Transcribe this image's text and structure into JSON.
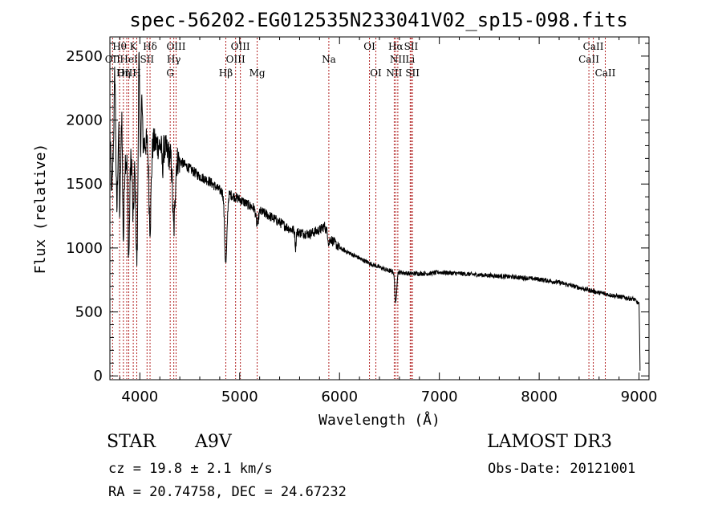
{
  "chart_data": {
    "type": "line",
    "title": "spec-56202-EG012535N233041V02_sp15-098.fits",
    "xlabel": "Wavelength (Å)",
    "ylabel": "Flux (relative)",
    "xlim": [
      3700,
      9100
    ],
    "ylim": [
      -30,
      2650
    ],
    "xticks": [
      4000,
      5000,
      6000,
      7000,
      8000,
      9000
    ],
    "yticks": [
      0,
      500,
      1000,
      1500,
      2000,
      2500
    ],
    "series": [
      {
        "name": "flux",
        "anchors": [
          [
            3700,
            1900
          ],
          [
            3720,
            1400
          ],
          [
            3740,
            1950
          ],
          [
            3760,
            1800
          ],
          [
            3800,
            1800
          ],
          [
            3850,
            1700
          ],
          [
            3900,
            1700
          ],
          [
            3950,
            1720
          ],
          [
            4000,
            1800
          ],
          [
            4050,
            1820
          ],
          [
            4100,
            1830
          ],
          [
            4150,
            1820
          ],
          [
            4200,
            1800
          ],
          [
            4250,
            1780
          ],
          [
            4300,
            1720
          ],
          [
            4350,
            1700
          ],
          [
            4400,
            1680
          ],
          [
            4500,
            1620
          ],
          [
            4600,
            1560
          ],
          [
            4700,
            1520
          ],
          [
            4800,
            1450
          ],
          [
            4900,
            1420
          ],
          [
            5000,
            1380
          ],
          [
            5100,
            1330
          ],
          [
            5200,
            1290
          ],
          [
            5300,
            1250
          ],
          [
            5400,
            1200
          ],
          [
            5500,
            1150
          ],
          [
            5600,
            1120
          ],
          [
            5700,
            1110
          ],
          [
            5800,
            1140
          ],
          [
            5850,
            1170
          ],
          [
            5900,
            1080
          ],
          [
            6000,
            1000
          ],
          [
            6100,
            960
          ],
          [
            6200,
            920
          ],
          [
            6300,
            880
          ],
          [
            6400,
            850
          ],
          [
            6500,
            820
          ],
          [
            6600,
            810
          ],
          [
            6700,
            800
          ],
          [
            6800,
            800
          ],
          [
            6900,
            800
          ],
          [
            7000,
            810
          ],
          [
            7100,
            805
          ],
          [
            7200,
            800
          ],
          [
            7400,
            790
          ],
          [
            7600,
            780
          ],
          [
            7800,
            770
          ],
          [
            8000,
            755
          ],
          [
            8200,
            730
          ],
          [
            8400,
            690
          ],
          [
            8600,
            650
          ],
          [
            8800,
            620
          ],
          [
            8950,
            600
          ],
          [
            9000,
            560
          ],
          [
            9010,
            90
          ]
        ],
        "absorption": [
          {
            "center": 3770,
            "width": 6,
            "depth": 500
          },
          {
            "center": 3798,
            "width": 6,
            "depth": 550
          },
          {
            "center": 3835,
            "width": 7,
            "depth": 650
          },
          {
            "center": 3889,
            "width": 8,
            "depth": 750
          },
          {
            "center": 3933,
            "width": 7,
            "depth": 500
          },
          {
            "center": 3970,
            "width": 10,
            "depth": 850
          },
          {
            "center": 4102,
            "width": 11,
            "depth": 650
          },
          {
            "center": 4227,
            "width": 6,
            "depth": 150
          },
          {
            "center": 4340,
            "width": 12,
            "depth": 550
          },
          {
            "center": 4861,
            "width": 12,
            "depth": 550
          },
          {
            "center": 5175,
            "width": 12,
            "depth": 120
          },
          {
            "center": 5560,
            "width": 5,
            "depth": 130
          },
          {
            "center": 5893,
            "width": 6,
            "depth": 60
          },
          {
            "center": 6563,
            "width": 9,
            "depth": 250
          }
        ],
        "emission": [
          {
            "center": 3750,
            "width": 5,
            "height": 500
          },
          {
            "center": 3790,
            "width": 4,
            "height": 300
          },
          {
            "center": 3820,
            "width": 4,
            "height": 350
          },
          {
            "center": 3990,
            "width": 6,
            "height": 800
          },
          {
            "center": 4020,
            "width": 5,
            "height": 350
          }
        ]
      }
    ],
    "spectral_lines": {
      "top": [
        {
          "label": "Hθ",
          "x": 3797,
          "row": 0
        },
        {
          "label": "K",
          "x": 3934,
          "row": 0
        },
        {
          "label": "Hδ",
          "x": 4102,
          "row": 0
        },
        {
          "label": "OIII",
          "x": 4363,
          "row": 0
        },
        {
          "label": "OIII",
          "x": 5007,
          "row": 0
        },
        {
          "label": "OI",
          "x": 6300,
          "row": 0
        },
        {
          "label": "Hα",
          "x": 6563,
          "row": 0
        },
        {
          "label": "SII",
          "x": 6717,
          "row": 0
        },
        {
          "label": "CaII",
          "x": 8542,
          "row": 0
        },
        {
          "label": "OII",
          "x": 3727,
          "row": 1
        },
        {
          "label": "HeI",
          "x": 3889,
          "row": 1
        },
        {
          "label": "SII",
          "x": 4072,
          "row": 1
        },
        {
          "label": "Hγ",
          "x": 4340,
          "row": 1
        },
        {
          "label": "OIII",
          "x": 4959,
          "row": 1
        },
        {
          "label": "Na",
          "x": 5893,
          "row": 1
        },
        {
          "label": "NII",
          "x": 6584,
          "row": 1
        },
        {
          "label": "Li",
          "x": 6708,
          "row": 1
        },
        {
          "label": "CaII",
          "x": 8498,
          "row": 1
        }
      ],
      "bottom": [
        {
          "label": "OIII",
          "x": 3869
        },
        {
          "label": "Hη",
          "x": 3835
        },
        {
          "label": "H",
          "x": 3969
        },
        {
          "label": "G",
          "x": 4304
        },
        {
          "label": "Hβ",
          "x": 4861
        },
        {
          "label": "Mg",
          "x": 5175
        },
        {
          "label": "OI",
          "x": 6364
        },
        {
          "label": "NII",
          "x": 6548
        },
        {
          "label": "SII",
          "x": 6731
        },
        {
          "label": "CaII",
          "x": 8662
        }
      ]
    }
  },
  "info": {
    "object_class": "STAR",
    "subclass": "A9V",
    "survey": "LAMOST DR3",
    "redshift": "cz = 19.8 ± 2.1 km/s",
    "obs_date": "Obs-Date: 20121001",
    "coords": "RA =  20.74758, DEC =  24.67232"
  }
}
